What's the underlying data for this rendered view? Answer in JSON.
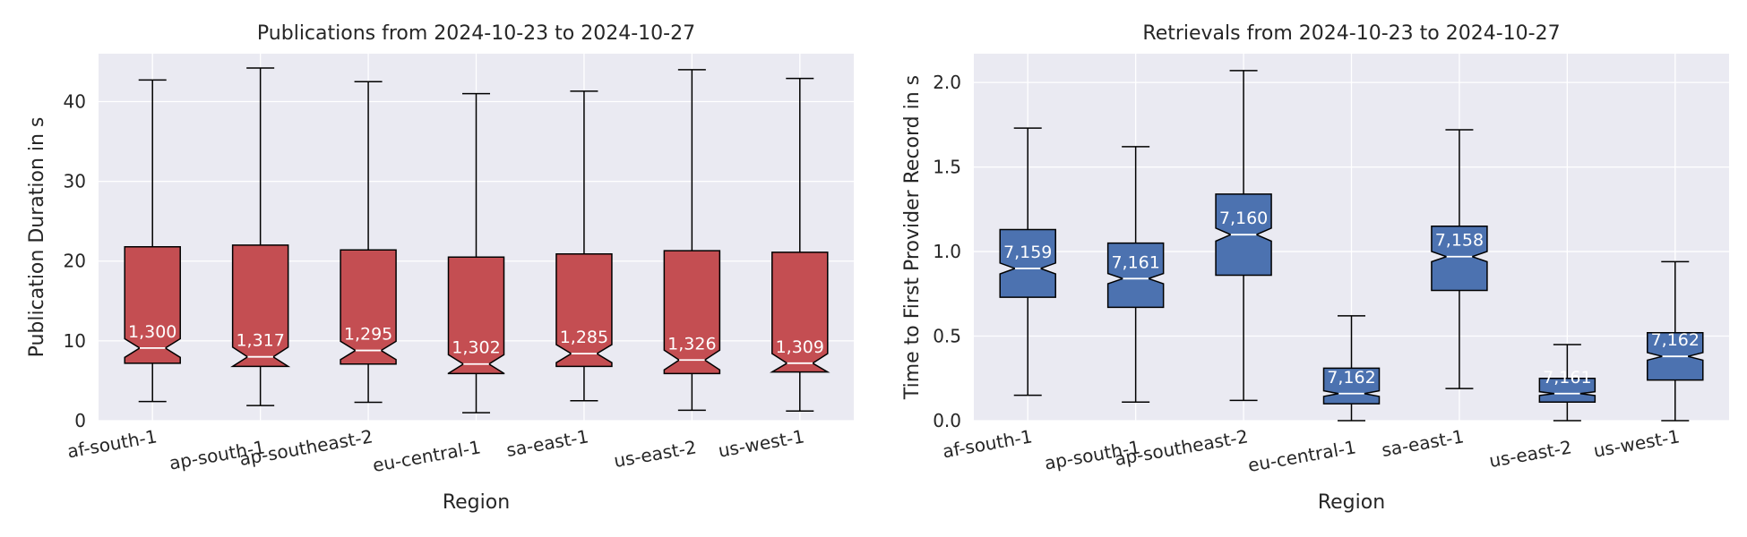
{
  "chart_data": [
    {
      "type": "box",
      "title": "Publications from 2024-10-23 to 2024-10-27",
      "xlabel": "Region",
      "ylabel": "Publication Duration in s",
      "ylim": [
        0,
        46
      ],
      "yticks": [
        0,
        10,
        20,
        30,
        40
      ],
      "ytick_labels": [
        "0",
        "10",
        "20",
        "30",
        "40"
      ],
      "grid": true,
      "color": "#c44e52",
      "categories": [
        "af-south-1",
        "ap-south-1",
        "ap-southeast-2",
        "eu-central-1",
        "sa-east-1",
        "us-east-2",
        "us-west-1"
      ],
      "whisker_low": [
        2.4,
        1.9,
        2.3,
        1.0,
        2.5,
        1.3,
        1.2
      ],
      "q1": [
        7.2,
        6.8,
        7.1,
        5.9,
        6.8,
        5.9,
        6.1
      ],
      "median": [
        9.1,
        8.0,
        8.8,
        7.1,
        8.4,
        7.6,
        7.2
      ],
      "q3": [
        21.8,
        22.0,
        21.4,
        20.5,
        20.9,
        21.3,
        21.1
      ],
      "whisker_high": [
        42.7,
        44.2,
        42.5,
        41.0,
        41.3,
        44.0,
        42.9
      ],
      "count_labels": [
        "1,300",
        "1,317",
        "1,295",
        "1,302",
        "1,285",
        "1,326",
        "1,309"
      ]
    },
    {
      "type": "box",
      "title": "Retrievals from 2024-10-23 to 2024-10-27",
      "xlabel": "Region",
      "ylabel": "Time to First Provider Record in s",
      "ylim": [
        0,
        2.17
      ],
      "yticks": [
        0,
        0.5,
        1.0,
        1.5,
        2.0
      ],
      "ytick_labels": [
        "0.0",
        "0.5",
        "1.0",
        "1.5",
        "2.0"
      ],
      "grid": true,
      "color": "#4c72b0",
      "categories": [
        "af-south-1",
        "ap-south-1",
        "ap-southeast-2",
        "eu-central-1",
        "sa-east-1",
        "us-east-2",
        "us-west-1"
      ],
      "whisker_low": [
        0.15,
        0.11,
        0.12,
        0.0,
        0.19,
        0.0,
        0.0
      ],
      "q1": [
        0.73,
        0.67,
        0.86,
        0.1,
        0.77,
        0.11,
        0.24
      ],
      "median": [
        0.9,
        0.84,
        1.1,
        0.16,
        0.97,
        0.16,
        0.38
      ],
      "q3": [
        1.13,
        1.05,
        1.34,
        0.31,
        1.15,
        0.25,
        0.52
      ],
      "whisker_high": [
        1.73,
        1.62,
        2.07,
        0.62,
        1.72,
        0.45,
        0.94
      ],
      "count_labels": [
        "7,159",
        "7,161",
        "7,160",
        "7,162",
        "7,158",
        "7,161",
        "7,162"
      ]
    }
  ]
}
